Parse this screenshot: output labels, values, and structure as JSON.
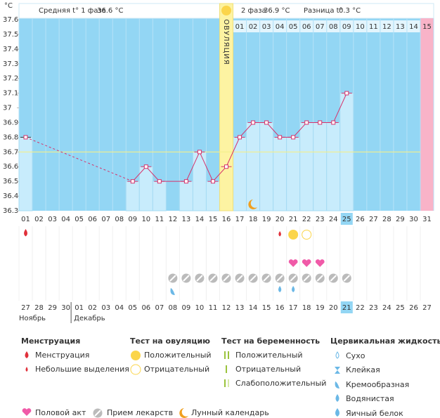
{
  "chart_data": {
    "type": "line",
    "unit": "°C",
    "header": {
      "phase1_label": "Средняя t° 1 фаза",
      "phase1_value": "36.6 °C",
      "phase2_label": "2 фаза",
      "phase2_value": "36.9 °C",
      "diff_label": "Разница t°",
      "diff_value": "0.3 °C"
    },
    "ovulation_label": "ОВУЛЯЦИЯ",
    "ovulation_day": 16,
    "next_cycle_day": 31,
    "coverline": 36.7,
    "x": [
      "01",
      "02",
      "03",
      "04",
      "05",
      "06",
      "07",
      "08",
      "09",
      "10",
      "11",
      "12",
      "13",
      "14",
      "15",
      "16",
      "17",
      "18",
      "19",
      "20",
      "21",
      "22",
      "23",
      "24",
      "25",
      "26",
      "27",
      "28",
      "29",
      "30",
      "31"
    ],
    "current_day": 25,
    "series": [
      {
        "name": "Температура",
        "color": "#d6336c",
        "values": [
          36.8,
          null,
          null,
          null,
          null,
          null,
          null,
          null,
          36.5,
          36.6,
          36.5,
          null,
          36.5,
          36.7,
          36.5,
          36.6,
          36.8,
          36.9,
          36.9,
          36.8,
          36.8,
          36.9,
          36.9,
          36.9,
          37.1,
          null,
          null,
          null,
          null,
          null,
          null
        ]
      }
    ],
    "phase2_days": [
      "01",
      "02",
      "03",
      "04",
      "05",
      "06",
      "07",
      "08",
      "09",
      "10",
      "11",
      "12",
      "13",
      "14",
      "15"
    ],
    "ylim": [
      36.3,
      37.6
    ],
    "yticks": [
      36.3,
      36.4,
      36.5,
      36.6,
      36.7,
      36.8,
      36.9,
      37,
      37.1,
      37.2,
      37.3,
      37.4,
      37.5,
      37.6
    ],
    "markers": {
      "menstruation": [
        1
      ],
      "spotting": [
        20
      ],
      "ovulation_positive": [
        21
      ],
      "ovulation_negative": [
        22
      ],
      "intercourse": [
        21,
        22,
        23
      ],
      "medication": [
        12,
        13,
        14,
        15,
        16,
        17,
        18,
        19,
        20,
        21,
        22,
        23,
        24,
        25
      ],
      "creamy": [
        12
      ],
      "watery": [
        20,
        21
      ],
      "moon": [
        18
      ]
    },
    "dates": [
      "27",
      "28",
      "29",
      "30",
      "01",
      "02",
      "03",
      "04",
      "05",
      "06",
      "07",
      "08",
      "09",
      "10",
      "11",
      "12",
      "13",
      "14",
      "15",
      "16",
      "17",
      "18",
      "19",
      "20",
      "21",
      "22",
      "23",
      "24",
      "25",
      "26",
      "27"
    ],
    "red_dates": [
      4,
      5,
      11,
      12,
      18,
      19,
      26
    ],
    "today": 25,
    "months": [
      {
        "day": 1,
        "label": "Ноябрь"
      },
      {
        "day": 5,
        "label": "Декабрь"
      }
    ]
  },
  "legend": {
    "menstruation": {
      "title": "Менструация",
      "items": [
        "Менструация",
        "Небольшие выделения"
      ]
    },
    "ovulation": {
      "title": "Тест на овуляцию",
      "items": [
        "Положительный",
        "Отрицательный"
      ]
    },
    "pregnancy": {
      "title": "Тест на беременность",
      "items": [
        "Положительный",
        "Отрицательный",
        "Слабоположительный"
      ]
    },
    "fluid": {
      "title": "Цервикальная жидкость",
      "items": [
        "Сухо",
        "Клейкая",
        "Кремообразная",
        "Водянистая",
        "Яичный белок"
      ]
    },
    "other": [
      "Половой акт",
      "Прием лекарств",
      "Лунный календарь"
    ]
  }
}
